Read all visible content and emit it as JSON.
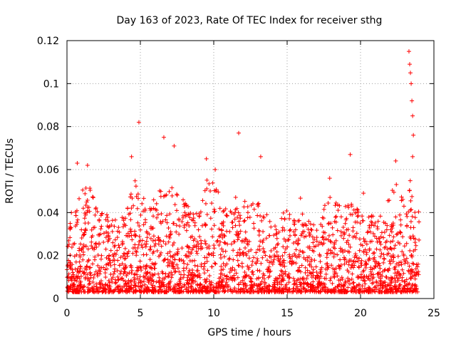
{
  "chart_data": {
    "type": "scatter",
    "title": "Day 163 of 2023, Rate Of TEC Index for receiver sthg",
    "xlabel": "GPS time / hours",
    "ylabel": "ROTI / TECUs",
    "xlim": [
      0,
      25
    ],
    "ylim": [
      0,
      0.12
    ],
    "xticks": [
      0,
      5,
      10,
      15,
      20,
      25
    ],
    "yticks": [
      0,
      0.02,
      0.04,
      0.06,
      0.08,
      0.1,
      0.12
    ],
    "xtick_labels": [
      "0",
      "5",
      "10",
      "15",
      "20",
      "25"
    ],
    "ytick_labels": [
      "0",
      "0.02",
      "0.04",
      "0.06",
      "0.08",
      "0.1",
      "0.12"
    ],
    "grid": true,
    "marker": "+",
    "series_color": "#ff0000",
    "data_x_range": [
      0,
      24
    ],
    "notable_points": [
      {
        "x": 4.9,
        "y": 0.082
      },
      {
        "x": 6.6,
        "y": 0.075
      },
      {
        "x": 7.3,
        "y": 0.071
      },
      {
        "x": 9.5,
        "y": 0.065
      },
      {
        "x": 11.7,
        "y": 0.077
      },
      {
        "x": 13.2,
        "y": 0.066
      },
      {
        "x": 19.3,
        "y": 0.067
      },
      {
        "x": 22.4,
        "y": 0.064
      },
      {
        "x": 23.3,
        "y": 0.115
      },
      {
        "x": 23.35,
        "y": 0.109
      },
      {
        "x": 23.4,
        "y": 0.105
      },
      {
        "x": 23.45,
        "y": 0.1
      },
      {
        "x": 23.5,
        "y": 0.092
      },
      {
        "x": 23.55,
        "y": 0.085
      },
      {
        "x": 23.6,
        "y": 0.076
      },
      {
        "x": 23.55,
        "y": 0.066
      },
      {
        "x": 0.3,
        "y": 0.04
      },
      {
        "x": 1.4,
        "y": 0.062
      },
      {
        "x": 0.7,
        "y": 0.063
      },
      {
        "x": 4.4,
        "y": 0.066
      },
      {
        "x": 10.1,
        "y": 0.06
      },
      {
        "x": 17.9,
        "y": 0.056
      },
      {
        "x": 20.2,
        "y": 0.049
      }
    ],
    "envelope": [
      {
        "x": 0,
        "y": 0.035
      },
      {
        "x": 0.5,
        "y": 0.04
      },
      {
        "x": 1,
        "y": 0.05
      },
      {
        "x": 1.5,
        "y": 0.055
      },
      {
        "x": 2,
        "y": 0.046
      },
      {
        "x": 2.5,
        "y": 0.045
      },
      {
        "x": 3,
        "y": 0.038
      },
      {
        "x": 3.5,
        "y": 0.036
      },
      {
        "x": 4,
        "y": 0.04
      },
      {
        "x": 4.5,
        "y": 0.058
      },
      {
        "x": 5,
        "y": 0.05
      },
      {
        "x": 5.5,
        "y": 0.045
      },
      {
        "x": 6,
        "y": 0.048
      },
      {
        "x": 6.5,
        "y": 0.052
      },
      {
        "x": 7,
        "y": 0.05
      },
      {
        "x": 7.5,
        "y": 0.055
      },
      {
        "x": 8,
        "y": 0.046
      },
      {
        "x": 8.5,
        "y": 0.04
      },
      {
        "x": 9,
        "y": 0.044
      },
      {
        "x": 9.5,
        "y": 0.055
      },
      {
        "x": 10,
        "y": 0.058
      },
      {
        "x": 10.5,
        "y": 0.048
      },
      {
        "x": 11,
        "y": 0.044
      },
      {
        "x": 11.5,
        "y": 0.05
      },
      {
        "x": 12,
        "y": 0.046
      },
      {
        "x": 12.5,
        "y": 0.044
      },
      {
        "x": 13,
        "y": 0.045
      },
      {
        "x": 13.5,
        "y": 0.04
      },
      {
        "x": 14,
        "y": 0.038
      },
      {
        "x": 14.5,
        "y": 0.036
      },
      {
        "x": 15,
        "y": 0.045
      },
      {
        "x": 15.5,
        "y": 0.04
      },
      {
        "x": 16,
        "y": 0.05
      },
      {
        "x": 16.5,
        "y": 0.036
      },
      {
        "x": 17,
        "y": 0.035
      },
      {
        "x": 17.5,
        "y": 0.042
      },
      {
        "x": 18,
        "y": 0.052
      },
      {
        "x": 18.5,
        "y": 0.045
      },
      {
        "x": 19,
        "y": 0.05
      },
      {
        "x": 19.5,
        "y": 0.045
      },
      {
        "x": 20,
        "y": 0.04
      },
      {
        "x": 20.5,
        "y": 0.038
      },
      {
        "x": 21,
        "y": 0.04
      },
      {
        "x": 21.5,
        "y": 0.038
      },
      {
        "x": 22,
        "y": 0.05
      },
      {
        "x": 22.5,
        "y": 0.055
      },
      {
        "x": 23,
        "y": 0.045
      },
      {
        "x": 23.5,
        "y": 0.06
      },
      {
        "x": 24,
        "y": 0.04
      }
    ]
  }
}
